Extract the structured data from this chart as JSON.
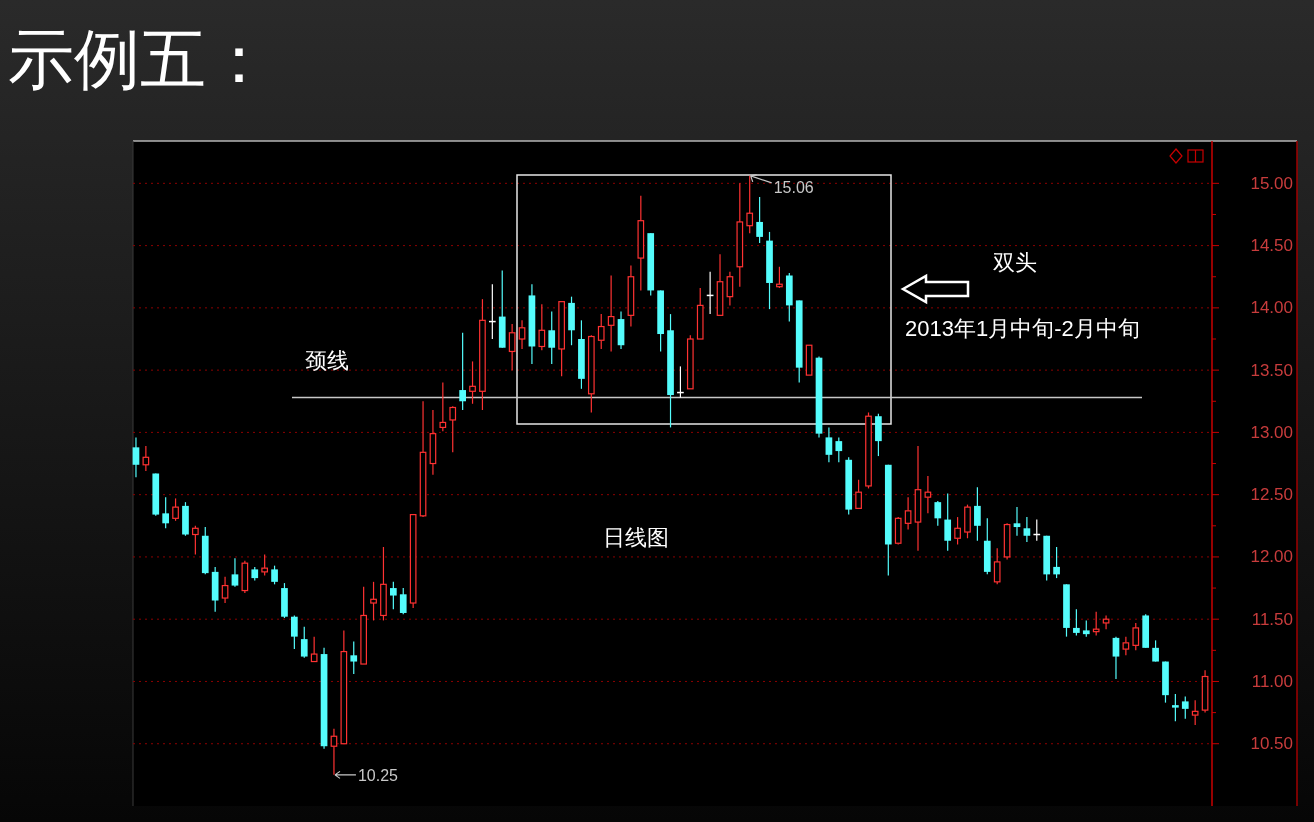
{
  "chart_data": {
    "type": "candlestick",
    "title": "示例五：",
    "categories": [
      null,
      null,
      null,
      null,
      null,
      null,
      null,
      null,
      null,
      null,
      null,
      null,
      null,
      null,
      null,
      null,
      null,
      null,
      null,
      null,
      null,
      null,
      null,
      null,
      null,
      null,
      null,
      null,
      null,
      null,
      null,
      null,
      null,
      null,
      null,
      null,
      null,
      null,
      null,
      null,
      null,
      null,
      null,
      null,
      null,
      null,
      null,
      null,
      null,
      null,
      null,
      null,
      null,
      null,
      null,
      null,
      null,
      null,
      null,
      null,
      null,
      null,
      null,
      null,
      null,
      null,
      null,
      null,
      null,
      null,
      null,
      null,
      null,
      null,
      null,
      null,
      null,
      null,
      null,
      null,
      null,
      null,
      null,
      null,
      null,
      null,
      null,
      null,
      null,
      null,
      null,
      null,
      null,
      null,
      null,
      null,
      null,
      null,
      null,
      null,
      null,
      null,
      null,
      null,
      null,
      null,
      null,
      null,
      null
    ],
    "ohlc": [
      [
        12.88,
        12.96,
        12.64,
        12.74
      ],
      [
        12.74,
        12.89,
        12.69,
        12.8
      ],
      [
        12.67,
        12.67,
        12.33,
        12.34
      ],
      [
        12.35,
        12.48,
        12.23,
        12.27
      ],
      [
        12.31,
        12.47,
        12.29,
        12.4
      ],
      [
        12.41,
        12.44,
        12.17,
        12.18
      ],
      [
        12.18,
        12.25,
        12.02,
        12.23
      ],
      [
        12.17,
        12.24,
        11.86,
        11.87
      ],
      [
        11.88,
        11.92,
        11.56,
        11.65
      ],
      [
        11.67,
        11.84,
        11.63,
        11.77
      ],
      [
        11.86,
        11.99,
        11.76,
        11.77
      ],
      [
        11.73,
        11.97,
        11.71,
        11.95
      ],
      [
        11.9,
        11.92,
        11.81,
        11.83
      ],
      [
        11.88,
        12.02,
        11.85,
        11.91
      ],
      [
        11.9,
        11.93,
        11.78,
        11.8
      ],
      [
        11.75,
        11.79,
        11.51,
        11.52
      ],
      [
        11.52,
        11.53,
        11.26,
        11.36
      ],
      [
        11.34,
        11.44,
        11.19,
        11.2
      ],
      [
        11.16,
        11.36,
        11.16,
        11.22
      ],
      [
        11.22,
        11.27,
        10.46,
        10.48
      ],
      [
        10.48,
        10.62,
        10.25,
        10.56
      ],
      [
        10.5,
        11.41,
        10.5,
        11.24
      ],
      [
        11.21,
        11.32,
        11.06,
        11.16
      ],
      [
        11.14,
        11.76,
        11.14,
        11.53
      ],
      [
        11.63,
        11.8,
        11.49,
        11.66
      ],
      [
        11.53,
        12.08,
        11.49,
        11.78
      ],
      [
        11.75,
        11.8,
        11.58,
        11.69
      ],
      [
        11.7,
        11.75,
        11.54,
        11.55
      ],
      [
        11.63,
        12.34,
        11.59,
        12.34
      ],
      [
        12.33,
        13.25,
        12.32,
        12.84
      ],
      [
        12.75,
        13.18,
        12.66,
        12.99
      ],
      [
        13.04,
        13.4,
        13.01,
        13.08
      ],
      [
        13.1,
        13.21,
        12.84,
        13.2
      ],
      [
        13.34,
        13.8,
        13.18,
        13.25
      ],
      [
        13.33,
        13.57,
        13.23,
        13.37
      ],
      [
        13.33,
        14.07,
        13.18,
        13.9
      ],
      [
        13.89,
        14.19,
        13.75,
        13.89
      ],
      [
        13.93,
        14.3,
        13.68,
        13.68
      ],
      [
        13.65,
        13.87,
        13.5,
        13.8
      ],
      [
        13.75,
        13.9,
        13.67,
        13.84
      ],
      [
        14.1,
        14.19,
        13.55,
        13.69
      ],
      [
        13.69,
        14.03,
        13.66,
        13.82
      ],
      [
        13.82,
        13.97,
        13.55,
        13.68
      ],
      [
        13.67,
        14.05,
        13.45,
        14.05
      ],
      [
        14.04,
        14.09,
        13.7,
        13.82
      ],
      [
        13.75,
        13.9,
        13.35,
        13.43
      ],
      [
        13.31,
        13.78,
        13.16,
        13.77
      ],
      [
        13.74,
        13.95,
        13.67,
        13.85
      ],
      [
        13.86,
        14.26,
        13.65,
        13.93
      ],
      [
        13.91,
        13.97,
        13.67,
        13.7
      ],
      [
        13.94,
        14.34,
        13.85,
        14.25
      ],
      [
        14.4,
        14.9,
        14.14,
        14.7
      ],
      [
        14.6,
        14.6,
        14.1,
        14.14
      ],
      [
        14.14,
        14.14,
        13.65,
        13.79
      ],
      [
        13.82,
        13.95,
        13.04,
        13.3
      ],
      [
        13.32,
        13.53,
        13.28,
        13.32
      ],
      [
        13.35,
        13.78,
        13.35,
        13.75
      ],
      [
        13.75,
        14.16,
        13.75,
        14.02
      ],
      [
        14.1,
        14.29,
        13.95,
        14.1
      ],
      [
        13.94,
        14.43,
        13.94,
        14.21
      ],
      [
        14.09,
        14.29,
        14.02,
        14.25
      ],
      [
        14.33,
        15.0,
        14.17,
        14.69
      ],
      [
        14.66,
        15.06,
        14.6,
        14.76
      ],
      [
        14.69,
        14.89,
        14.52,
        14.57
      ],
      [
        14.54,
        14.61,
        13.99,
        14.2
      ],
      [
        14.17,
        14.33,
        14.16,
        14.19
      ],
      [
        14.26,
        14.28,
        13.89,
        14.02
      ],
      [
        14.06,
        14.06,
        13.4,
        13.52
      ],
      [
        13.46,
        13.7,
        13.46,
        13.7
      ],
      [
        13.6,
        13.61,
        12.96,
        12.99
      ],
      [
        12.96,
        13.04,
        12.76,
        12.82
      ],
      [
        12.93,
        12.96,
        12.76,
        12.85
      ],
      [
        12.78,
        12.8,
        12.34,
        12.38
      ],
      [
        12.39,
        12.62,
        12.39,
        12.52
      ],
      [
        12.57,
        13.16,
        12.55,
        13.13
      ],
      [
        13.13,
        13.15,
        12.81,
        12.93
      ],
      [
        12.74,
        12.74,
        11.85,
        12.1
      ],
      [
        12.11,
        12.32,
        12.1,
        12.31
      ],
      [
        12.27,
        12.48,
        12.22,
        12.37
      ],
      [
        12.28,
        12.89,
        12.05,
        12.54
      ],
      [
        12.48,
        12.65,
        12.35,
        12.52
      ],
      [
        12.44,
        12.45,
        12.25,
        12.31
      ],
      [
        12.3,
        12.51,
        12.05,
        12.13
      ],
      [
        12.15,
        12.32,
        12.1,
        12.23
      ],
      [
        12.2,
        12.42,
        12.15,
        12.4
      ],
      [
        12.41,
        12.56,
        12.13,
        12.25
      ],
      [
        12.13,
        12.31,
        11.86,
        11.88
      ],
      [
        11.8,
        12.07,
        11.78,
        11.96
      ],
      [
        12.0,
        12.27,
        11.98,
        12.26
      ],
      [
        12.27,
        12.4,
        12.17,
        12.24
      ],
      [
        12.23,
        12.32,
        12.12,
        12.17
      ],
      [
        12.18,
        12.3,
        12.13,
        12.18
      ],
      [
        12.17,
        12.17,
        11.81,
        11.86
      ],
      [
        11.92,
        12.08,
        11.83,
        11.86
      ],
      [
        11.78,
        11.78,
        11.36,
        11.43
      ],
      [
        11.43,
        11.58,
        11.37,
        11.39
      ],
      [
        11.41,
        11.49,
        11.36,
        11.38
      ],
      [
        11.4,
        11.56,
        11.37,
        11.42
      ],
      [
        11.47,
        11.53,
        11.42,
        11.5
      ],
      [
        11.35,
        11.36,
        11.02,
        11.2
      ],
      [
        11.26,
        11.36,
        11.21,
        11.31
      ],
      [
        11.29,
        11.47,
        11.25,
        11.43
      ],
      [
        11.53,
        11.54,
        11.27,
        11.27
      ],
      [
        11.27,
        11.33,
        11.16,
        11.16
      ],
      [
        11.16,
        11.16,
        10.83,
        10.89
      ],
      [
        10.81,
        10.9,
        10.68,
        10.79
      ],
      [
        10.84,
        10.88,
        10.7,
        10.78
      ],
      [
        10.73,
        10.85,
        10.65,
        10.76
      ],
      [
        10.77,
        11.09,
        10.75,
        11.04
      ]
    ],
    "colors": [
      "#54fcfc",
      "#ff3232",
      "#54fcfc",
      "#54fcfc",
      "#ff3232",
      "#54fcfc",
      "#ff3232",
      "#54fcfc",
      "#54fcfc",
      "#ff3232",
      "#54fcfc",
      "#ff3232",
      "#54fcfc",
      "#ff3232",
      "#54fcfc",
      "#54fcfc",
      "#54fcfc",
      "#54fcfc",
      "#ff3232",
      "#54fcfc",
      "#ff3232",
      "#ff3232",
      "#54fcfc",
      "#ff3232",
      "#ff3232",
      "#ff3232",
      "#54fcfc",
      "#54fcfc",
      "#ff3232",
      "#ff3232",
      "#ff3232",
      "#ff3232",
      "#ff3232",
      "#54fcfc",
      "#ff3232",
      "#ff3232",
      "#ffffff",
      "#54fcfc",
      "#ff3232",
      "#ff3232",
      "#54fcfc",
      "#ff3232",
      "#54fcfc",
      "#ff3232",
      "#54fcfc",
      "#54fcfc",
      "#ff3232",
      "#ff3232",
      "#ff3232",
      "#54fcfc",
      "#ff3232",
      "#ff3232",
      "#54fcfc",
      "#54fcfc",
      "#54fcfc",
      "#ffffff",
      "#ff3232",
      "#ff3232",
      "#ffffff",
      "#ff3232",
      "#ff3232",
      "#ff3232",
      "#ff3232",
      "#54fcfc",
      "#54fcfc",
      "#ff3232",
      "#54fcfc",
      "#54fcfc",
      "#ff3232",
      "#54fcfc",
      "#54fcfc",
      "#54fcfc",
      "#54fcfc",
      "#ff3232",
      "#ff3232",
      "#54fcfc",
      "#54fcfc",
      "#ff3232",
      "#ff3232",
      "#ff3232",
      "#ff3232",
      "#54fcfc",
      "#54fcfc",
      "#ff3232",
      "#ff3232",
      "#54fcfc",
      "#54fcfc",
      "#ff3232",
      "#ff3232",
      "#54fcfc",
      "#54fcfc",
      "#ffffff",
      "#54fcfc",
      "#54fcfc",
      "#54fcfc",
      "#54fcfc",
      "#54fcfc",
      "#ff3232",
      "#ff3232",
      "#54fcfc",
      "#ff3232",
      "#ff3232",
      "#54fcfc",
      "#54fcfc",
      "#54fcfc",
      "#54fcfc",
      "#54fcfc",
      "#ff3232",
      "#ff3232"
    ],
    "ylim": [
      10.0,
      15.34
    ],
    "yticks": [
      {
        "value": 10.5,
        "label": "10.50"
      },
      {
        "value": 10.75,
        "label": null
      },
      {
        "value": 11.0,
        "label": "11.00"
      },
      {
        "value": 11.25,
        "label": null
      },
      {
        "value": 11.5,
        "label": "11.50"
      },
      {
        "value": 11.75,
        "label": null
      },
      {
        "value": 12.0,
        "label": "12.00"
      },
      {
        "value": 12.25,
        "label": null
      },
      {
        "value": 12.5,
        "label": "12.50"
      },
      {
        "value": 12.75,
        "label": null
      },
      {
        "value": 13.0,
        "label": "13.00"
      },
      {
        "value": 13.25,
        "label": null
      },
      {
        "value": 13.5,
        "label": "13.50"
      },
      {
        "value": 13.75,
        "label": null
      },
      {
        "value": 14.0,
        "label": "14.00"
      },
      {
        "value": 14.25,
        "label": null
      },
      {
        "value": 14.5,
        "label": "14.50"
      },
      {
        "value": 14.75,
        "label": null
      },
      {
        "value": 15.0,
        "label": "15.00"
      }
    ],
    "grid": "y",
    "tick_labels": "y",
    "ref_lines": [
      {
        "axis": "y",
        "value": 13.28,
        "label": "颈线",
        "color": "#c8c8c8"
      }
    ],
    "annotations": [
      "双头",
      "2013年1月中旬-2月中旬",
      "日线图",
      "10.25",
      "15.06"
    ]
  }
}
